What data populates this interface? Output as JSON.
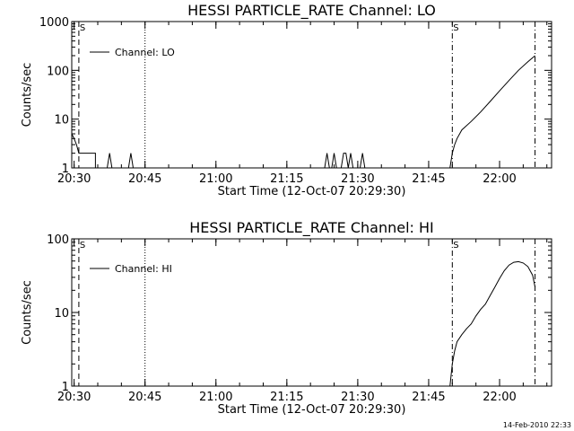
{
  "footer": {
    "timestamp": "14-Feb-2010 22:33"
  },
  "chart_data": [
    {
      "type": "line",
      "title": "HESSI PARTICLE_RATE Channel: LO",
      "xlabel": "Start Time (12-Oct-07 20:29:30)",
      "ylabel": "Counts/sec",
      "yscale": "log",
      "xlim": [
        "20:29:30",
        "22:11:00"
      ],
      "ylim": [
        1,
        1000
      ],
      "xticks": [
        "20:30",
        "20:45",
        "21:00",
        "21:15",
        "21:30",
        "21:45",
        "22:00"
      ],
      "yticks": [
        "1",
        "10",
        "100",
        "1000"
      ],
      "legend": {
        "position": "top-left",
        "entries": [
          "Channel: LO"
        ]
      },
      "markers": [
        {
          "time": "20:31:00",
          "style": "dashed",
          "label": "S"
        },
        {
          "time": "20:45:00",
          "style": "dotted",
          "label": ""
        },
        {
          "time": "21:50:00",
          "style": "dashdot",
          "label": "S"
        },
        {
          "time": "22:07:30",
          "style": "dashdot",
          "label": ""
        }
      ],
      "series": [
        {
          "name": "Channel: LO",
          "x": [
            "20:29:30",
            "20:30:00",
            "20:30:30",
            "20:31:00",
            "20:31:30",
            "20:32:00",
            "20:33:00",
            "20:34:00",
            "20:34:30",
            "20:34:31",
            "20:37:00",
            "20:37:30",
            "20:38:00",
            "20:41:30",
            "20:42:00",
            "20:42:30",
            "21:23:00",
            "21:23:30",
            "21:24:00",
            "21:24:30",
            "21:25:00",
            "21:25:30",
            "21:26:30",
            "21:27:00",
            "21:27:30",
            "21:28:00",
            "21:28:30",
            "21:29:00",
            "21:29:30",
            "21:30:30",
            "21:31:00",
            "21:31:30",
            "21:49:30",
            "21:50:00",
            "21:50:30",
            "21:51:00",
            "21:52:00",
            "21:54:00",
            "21:56:00",
            "21:58:00",
            "22:00:00",
            "22:02:00",
            "22:04:00",
            "22:06:00",
            "22:07:30"
          ],
          "y": [
            5,
            4,
            3,
            2,
            2,
            2,
            2,
            2,
            2,
            1,
            1,
            2,
            1,
            1,
            2,
            1,
            1,
            2,
            1,
            1,
            2,
            1,
            1,
            2,
            2,
            1,
            2,
            1,
            1,
            1,
            2,
            1,
            1,
            2,
            3,
            4,
            6,
            9,
            14,
            23,
            38,
            62,
            100,
            150,
            200
          ]
        }
      ]
    },
    {
      "type": "line",
      "title": "HESSI PARTICLE_RATE Channel: HI",
      "xlabel": "Start Time (12-Oct-07 20:29:30)",
      "ylabel": "Counts/sec",
      "yscale": "log",
      "xlim": [
        "20:29:30",
        "22:11:00"
      ],
      "ylim": [
        1,
        100
      ],
      "xticks": [
        "20:30",
        "20:45",
        "21:00",
        "21:15",
        "21:30",
        "21:45",
        "22:00"
      ],
      "yticks": [
        "1",
        "10",
        "100"
      ],
      "legend": {
        "position": "top-left",
        "entries": [
          "Channel: HI"
        ]
      },
      "markers": [
        {
          "time": "20:31:00",
          "style": "dashed",
          "label": "S"
        },
        {
          "time": "20:45:00",
          "style": "dotted",
          "label": ""
        },
        {
          "time": "21:50:00",
          "style": "dashdot",
          "label": "S"
        },
        {
          "time": "22:07:30",
          "style": "dashdot",
          "label": ""
        }
      ],
      "series": [
        {
          "name": "Channel: HI",
          "x": [
            "21:49:30",
            "21:50:00",
            "21:50:30",
            "21:51:00",
            "21:52:00",
            "21:53:00",
            "21:54:00",
            "21:55:00",
            "21:56:00",
            "21:57:00",
            "21:58:00",
            "21:59:00",
            "22:00:00",
            "22:01:00",
            "22:02:00",
            "22:03:00",
            "22:04:00",
            "22:05:00",
            "22:06:00",
            "22:07:00",
            "22:07:30"
          ],
          "y": [
            1,
            2,
            3,
            4,
            5,
            6,
            7,
            9,
            11,
            13,
            17,
            22,
            29,
            37,
            44,
            48,
            49,
            47,
            42,
            32,
            22
          ]
        }
      ]
    }
  ]
}
